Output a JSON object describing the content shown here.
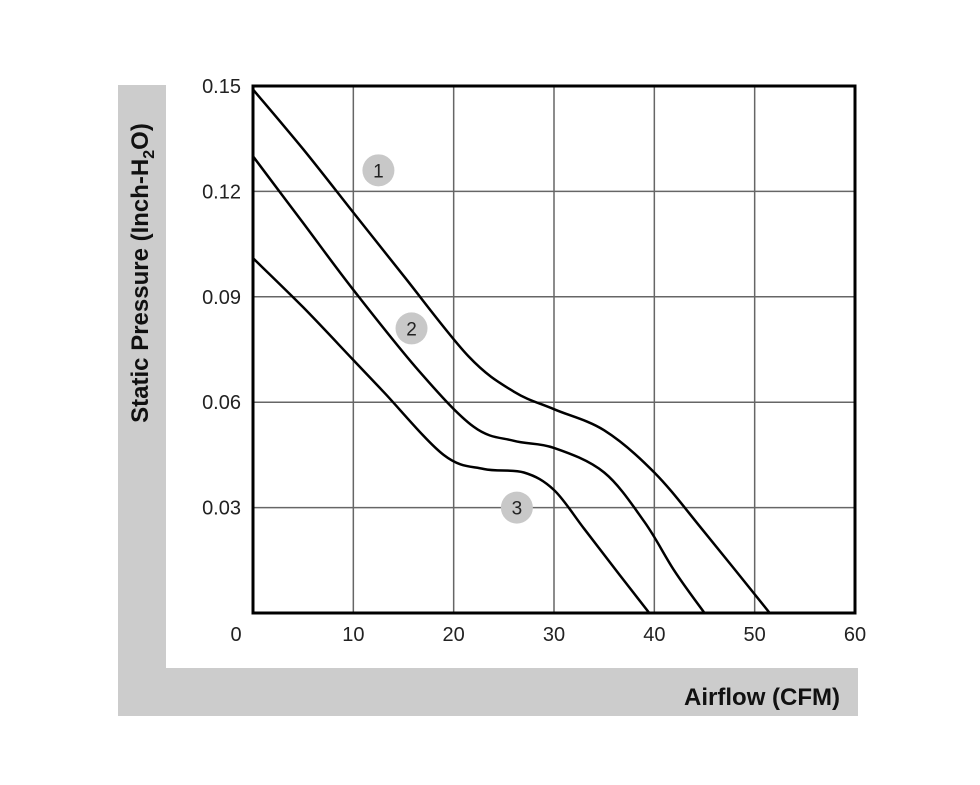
{
  "chart_data": {
    "type": "line",
    "title": "",
    "xlabel": "Airflow (CFM)",
    "ylabel": {
      "prefix": "Static Pressure (Inch-H",
      "sub": "2",
      "suffix": "O)"
    },
    "xlim": [
      0,
      60
    ],
    "ylim": [
      0,
      0.15
    ],
    "xticks": [
      "0",
      "10",
      "20",
      "30",
      "40",
      "50",
      "60"
    ],
    "yticks": [
      "0.03",
      "0.06",
      "0.09",
      "0.12",
      "0.15"
    ],
    "grid": true,
    "legend": "numbered markers on curves",
    "colors": {
      "line": "#000000",
      "panel": "#cccccc",
      "grid": "#666666",
      "badge": "#c8c8c8"
    },
    "series": [
      {
        "name": "1",
        "x": [
          0,
          5,
          10,
          15,
          21.5,
          26,
          30,
          35,
          40,
          45,
          51.5
        ],
        "y": [
          0.149,
          0.132,
          0.114,
          0.096,
          0.073,
          0.063,
          0.058,
          0.052,
          0.04,
          0.023,
          0.0
        ]
      },
      {
        "name": "2",
        "x": [
          0,
          5,
          10,
          16.5,
          22,
          26,
          30,
          35,
          39,
          42,
          45
        ],
        "y": [
          0.13,
          0.111,
          0.092,
          0.069,
          0.053,
          0.049,
          0.047,
          0.04,
          0.026,
          0.012,
          0.0
        ]
      },
      {
        "name": "3",
        "x": [
          0,
          5,
          10,
          13,
          19,
          23,
          27,
          30,
          33,
          36.5,
          39.5
        ],
        "y": [
          0.101,
          0.087,
          0.072,
          0.063,
          0.045,
          0.041,
          0.04,
          0.035,
          0.024,
          0.011,
          0.0
        ]
      }
    ],
    "badges": [
      {
        "label": "1",
        "x": 12.5,
        "y": 0.126
      },
      {
        "label": "2",
        "x": 15.8,
        "y": 0.081
      },
      {
        "label": "3",
        "x": 26.3,
        "y": 0.03
      }
    ]
  }
}
